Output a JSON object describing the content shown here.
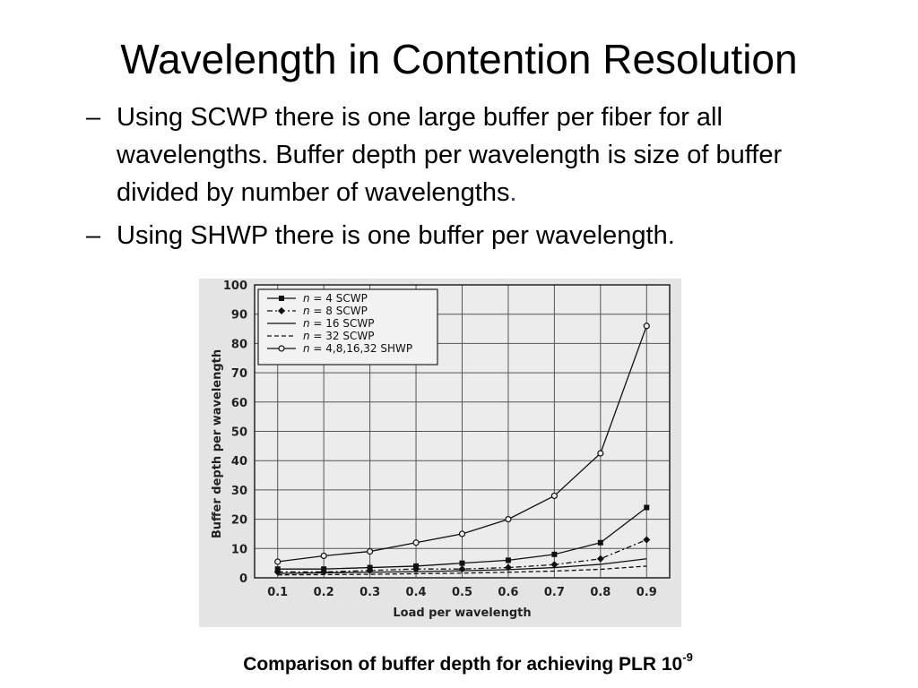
{
  "slide": {
    "title": "Wavelength in Contention Resolution",
    "bullets": [
      {
        "dash": "–",
        "text": "Using SCWP there is one large buffer per fiber for all wavelengths. Buffer depth per wavelength is size of buffer divided by number of wavelengths",
        "trail": "."
      },
      {
        "dash": "–",
        "text": "Using SHWP there is one buffer per wavelength.",
        "trail": ""
      }
    ],
    "caption": {
      "text": "Comparison of buffer depth for achieving PLR 10",
      "exponent": "-9"
    }
  },
  "colors": {
    "background": "#ffffff",
    "plot_bg": "#e4e4e4",
    "grid": "#555555",
    "series": "#111111",
    "caption_dot": "#1f3a93"
  },
  "chart_data": {
    "type": "line",
    "xlabel": "Load per wavelength",
    "ylabel": "Buffer depth per wavelength",
    "x": [
      0.1,
      0.2,
      0.3,
      0.4,
      0.5,
      0.6,
      0.7,
      0.8,
      0.9
    ],
    "x_tick_labels": [
      "0.1",
      "0.2",
      "0.3",
      "0.4",
      "0.5",
      "0.6",
      "0.7",
      "0.8",
      "0.9"
    ],
    "y_ticks": [
      0,
      10,
      20,
      30,
      40,
      50,
      60,
      70,
      80,
      90,
      100
    ],
    "xlim": [
      0.05,
      0.95
    ],
    "ylim": [
      0,
      100
    ],
    "grid": true,
    "legend_position": "top-left",
    "series": [
      {
        "name": "n = 4 SCWP",
        "n_prefix": "n",
        "rest": " = 4 SCWP",
        "marker": "square",
        "line": "solid",
        "values": [
          3,
          3,
          3.5,
          4,
          5,
          6,
          8,
          12,
          24
        ]
      },
      {
        "name": "n = 8 SCWP",
        "n_prefix": "n",
        "rest": " = 8 SCWP",
        "marker": "diamond",
        "line": "dashdot",
        "values": [
          2,
          2,
          2.5,
          3,
          3,
          3.5,
          4.5,
          6.5,
          13
        ]
      },
      {
        "name": "n = 16 SCWP",
        "n_prefix": "n",
        "rest": " = 16 SCWP",
        "marker": "none",
        "line": "solid",
        "values": [
          1.5,
          1.7,
          1.9,
          2.1,
          2.4,
          2.8,
          3.5,
          4.6,
          6.5
        ]
      },
      {
        "name": "n = 32 SCWP",
        "n_prefix": "n",
        "rest": " = 32 SCWP",
        "marker": "none",
        "line": "dashed",
        "values": [
          1,
          1.1,
          1.2,
          1.4,
          1.6,
          1.9,
          2.3,
          2.9,
          4
        ]
      },
      {
        "name": "n = 4,8,16,32 SHWP",
        "n_prefix": "n",
        "rest": " = 4,8,16,32 SHWP",
        "marker": "circle",
        "line": "solid",
        "values": [
          5.5,
          7.5,
          9,
          12,
          15,
          20,
          28,
          42.5,
          86
        ]
      }
    ]
  }
}
